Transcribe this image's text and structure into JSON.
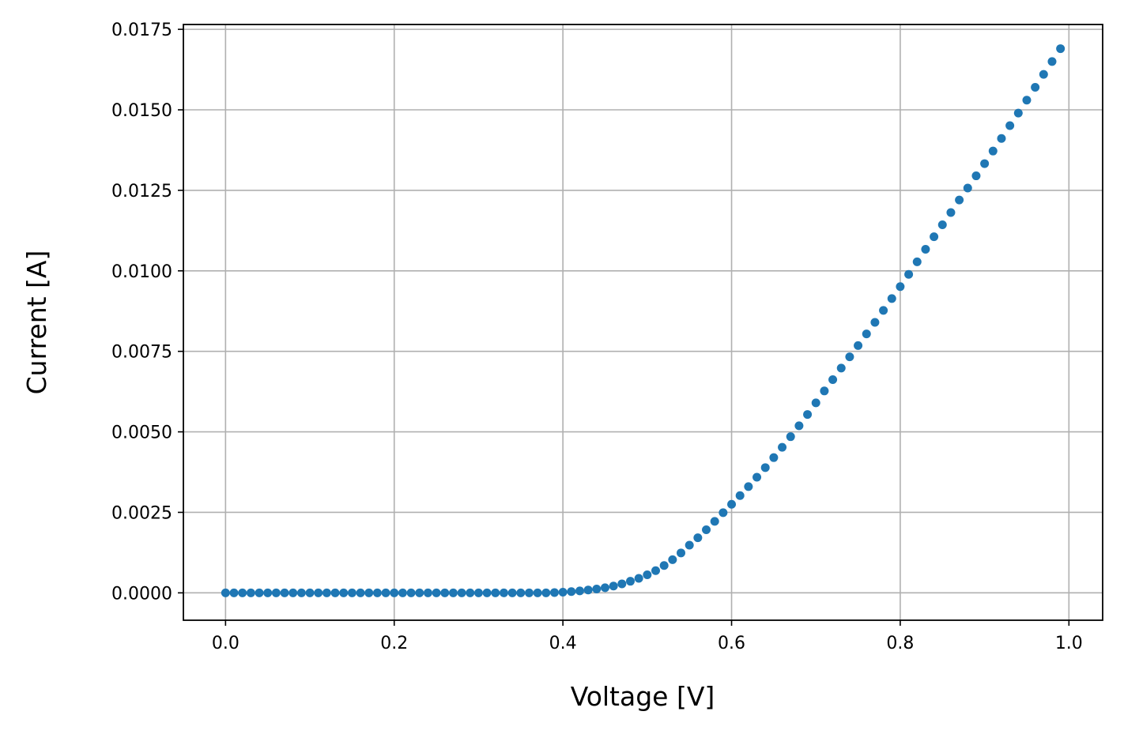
{
  "chart_data": {
    "type": "scatter",
    "xlabel": "Voltage [V]",
    "ylabel": "Current [A]",
    "xlim": [
      -0.05,
      1.04
    ],
    "ylim": [
      -0.00085,
      0.01765
    ],
    "x_ticks": [
      0.0,
      0.2,
      0.4,
      0.6,
      0.8,
      1.0
    ],
    "x_tick_labels": [
      "0.0",
      "0.2",
      "0.4",
      "0.6",
      "0.8",
      "1.0"
    ],
    "y_ticks": [
      0.0,
      0.0025,
      0.005,
      0.0075,
      0.01,
      0.0125,
      0.015,
      0.0175
    ],
    "y_tick_labels": [
      "0.0000",
      "0.0025",
      "0.0050",
      "0.0075",
      "0.0100",
      "0.0125",
      "0.0150",
      "0.0175"
    ],
    "grid": true,
    "marker_color": "#1f77b4",
    "series": [
      {
        "x": [
          0.0,
          0.01,
          0.02,
          0.03,
          0.04,
          0.05,
          0.06,
          0.07,
          0.08,
          0.09,
          0.1,
          0.11,
          0.12,
          0.13,
          0.14,
          0.15,
          0.16,
          0.17,
          0.18,
          0.19,
          0.2,
          0.21,
          0.22,
          0.23,
          0.24,
          0.25,
          0.26,
          0.27,
          0.28,
          0.29,
          0.3,
          0.31,
          0.32,
          0.33,
          0.34,
          0.35,
          0.36,
          0.37,
          0.38,
          0.39,
          0.4,
          0.41,
          0.42,
          0.43,
          0.44,
          0.45,
          0.46,
          0.47,
          0.48,
          0.49,
          0.5,
          0.51,
          0.52,
          0.53,
          0.54,
          0.55,
          0.56,
          0.57,
          0.58,
          0.59,
          0.6,
          0.61,
          0.62,
          0.63,
          0.64,
          0.65,
          0.66,
          0.67,
          0.68,
          0.69,
          0.7,
          0.71,
          0.72,
          0.73,
          0.74,
          0.75,
          0.76,
          0.77,
          0.78,
          0.79,
          0.8,
          0.81,
          0.82,
          0.83,
          0.84,
          0.85,
          0.86,
          0.87,
          0.88,
          0.89,
          0.9,
          0.91,
          0.92,
          0.93,
          0.94,
          0.95,
          0.96,
          0.97,
          0.98,
          0.99
        ],
        "y": [
          0,
          0,
          0,
          0,
          0,
          0,
          0,
          0,
          0,
          0,
          0,
          0,
          0,
          0,
          0,
          0,
          0,
          0,
          0,
          0,
          0,
          0,
          0,
          0,
          0,
          0,
          0,
          0,
          0,
          0,
          0,
          0,
          0,
          0,
          0,
          0,
          0,
          0,
          0,
          1e-05,
          2e-05,
          4e-05,
          6e-05,
          9e-05,
          0.00012,
          0.00016,
          0.00021,
          0.00028,
          0.00036,
          0.00045,
          0.00056,
          0.00069,
          0.00085,
          0.00103,
          0.00124,
          0.00148,
          0.00171,
          0.00196,
          0.00222,
          0.00249,
          0.00275,
          0.00302,
          0.0033,
          0.00359,
          0.00389,
          0.0042,
          0.00452,
          0.00485,
          0.00519,
          0.00554,
          0.0059,
          0.00627,
          0.00662,
          0.00698,
          0.00733,
          0.00768,
          0.00804,
          0.0084,
          0.00877,
          0.00914,
          0.00951,
          0.00989,
          0.01028,
          0.01067,
          0.01106,
          0.01143,
          0.01181,
          0.0122,
          0.01257,
          0.01295,
          0.01333,
          0.01372,
          0.01411,
          0.01451,
          0.0149,
          0.0153,
          0.0157,
          0.0161,
          0.0165,
          0.0169
        ]
      }
    ]
  }
}
